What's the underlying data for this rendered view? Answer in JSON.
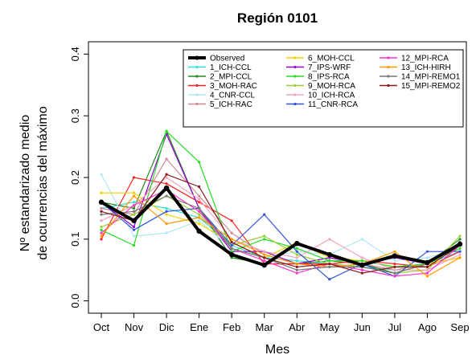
{
  "chart_data": {
    "type": "line",
    "title": "Región 0101",
    "xlabel": "Mes",
    "ylabel_lines": [
      "Nº estandarizado medio",
      "de ocurrencias del máximo"
    ],
    "categories": [
      "Oct",
      "Nov",
      "Dic",
      "Ene",
      "Feb",
      "Mar",
      "Abr",
      "May",
      "Jun",
      "Jul",
      "Ago",
      "Sep"
    ],
    "ylim": [
      -0.02,
      0.42
    ],
    "yticks": [
      0.0,
      0.1,
      0.2,
      0.3,
      0.4
    ],
    "ytick_labels": [
      "0.0",
      "0.1",
      "0.2",
      "0.3",
      "0.4"
    ],
    "grid": false,
    "legend_position": "top-right",
    "series": [
      {
        "name": "Observed",
        "color": "#000000",
        "width": 4,
        "values": [
          0.16,
          0.13,
          0.183,
          0.113,
          0.075,
          0.058,
          0.093,
          0.075,
          0.058,
          0.073,
          0.062,
          0.092
        ]
      },
      {
        "name": "1_ICH-CCL",
        "color": "#2fe0d4",
        "width": 1.2,
        "values": [
          0.15,
          0.16,
          0.15,
          0.135,
          0.09,
          0.07,
          0.065,
          0.06,
          0.055,
          0.05,
          0.06,
          0.08
        ]
      },
      {
        "name": "2_MPI-CCL",
        "color": "#228b22",
        "width": 1.2,
        "values": [
          0.16,
          0.15,
          0.275,
          0.15,
          0.07,
          0.06,
          0.06,
          0.065,
          0.06,
          0.045,
          0.06,
          0.1
        ]
      },
      {
        "name": "3_MOH-RAC",
        "color": "#ff2222",
        "width": 1.2,
        "values": [
          0.1,
          0.2,
          0.19,
          0.16,
          0.13,
          0.06,
          0.06,
          0.06,
          0.065,
          0.06,
          0.055,
          0.08
        ]
      },
      {
        "name": "4_CNR-CCL",
        "color": "#aee7f5",
        "width": 1.2,
        "values": [
          0.205,
          0.105,
          0.11,
          0.13,
          0.085,
          0.07,
          0.08,
          0.075,
          0.1,
          0.065,
          0.07,
          0.085
        ]
      },
      {
        "name": "5_ICH-RAC",
        "color": "#d08a94",
        "width": 1.2,
        "values": [
          0.15,
          0.14,
          0.23,
          0.17,
          0.11,
          0.075,
          0.06,
          0.07,
          0.06,
          0.05,
          0.06,
          0.07
        ]
      },
      {
        "name": "6_MOH-CCL",
        "color": "#f0d000",
        "width": 1.2,
        "values": [
          0.175,
          0.175,
          0.14,
          0.125,
          0.095,
          0.07,
          0.095,
          0.07,
          0.065,
          0.055,
          0.06,
          0.07
        ]
      },
      {
        "name": "7_IPS-WRF",
        "color": "#9400d3",
        "width": 1.2,
        "values": [
          0.16,
          0.12,
          0.27,
          0.15,
          0.08,
          0.08,
          0.06,
          0.07,
          0.06,
          0.07,
          0.06,
          0.095
        ]
      },
      {
        "name": "8_IPS-RCA",
        "color": "#22dd22",
        "width": 1.2,
        "values": [
          0.115,
          0.09,
          0.275,
          0.225,
          0.08,
          0.1,
          0.085,
          0.065,
          0.065,
          0.055,
          0.06,
          0.085
        ]
      },
      {
        "name": "9_MOH-RCA",
        "color": "#9acd32",
        "width": 1.2,
        "values": [
          0.12,
          0.14,
          0.17,
          0.14,
          0.09,
          0.105,
          0.075,
          0.06,
          0.055,
          0.045,
          0.05,
          0.105
        ]
      },
      {
        "name": "10_ICH-RCA",
        "color": "#f4a6b8",
        "width": 1.2,
        "values": [
          0.13,
          0.155,
          0.2,
          0.165,
          0.1,
          0.08,
          0.07,
          0.1,
          0.07,
          0.05,
          0.05,
          0.075
        ]
      },
      {
        "name": "11_CNR-RCA",
        "color": "#3355dd",
        "width": 1.2,
        "values": [
          0.16,
          0.115,
          0.145,
          0.15,
          0.09,
          0.14,
          0.08,
          0.035,
          0.06,
          0.04,
          0.08,
          0.08
        ]
      },
      {
        "name": "12_MPI-RCA",
        "color": "#ff33cc",
        "width": 1.2,
        "values": [
          0.11,
          0.155,
          0.18,
          0.145,
          0.085,
          0.065,
          0.045,
          0.06,
          0.05,
          0.04,
          0.045,
          0.09
        ]
      },
      {
        "name": "13_ICH-HIRH",
        "color": "#ff9900",
        "width": 1.2,
        "values": [
          0.105,
          0.17,
          0.125,
          0.135,
          0.1,
          0.075,
          0.06,
          0.055,
          0.06,
          0.08,
          0.04,
          0.07
        ]
      },
      {
        "name": "14_MPI-REMO1",
        "color": "#777777",
        "width": 1.2,
        "values": [
          0.14,
          0.145,
          0.17,
          0.15,
          0.085,
          0.07,
          0.05,
          0.055,
          0.055,
          0.045,
          0.06,
          0.095
        ]
      },
      {
        "name": "15_MPI-REMO2",
        "color": "#8b1a1a",
        "width": 1.2,
        "values": [
          0.145,
          0.13,
          0.205,
          0.185,
          0.095,
          0.07,
          0.055,
          0.06,
          0.045,
          0.055,
          0.055,
          0.09
        ]
      }
    ]
  }
}
